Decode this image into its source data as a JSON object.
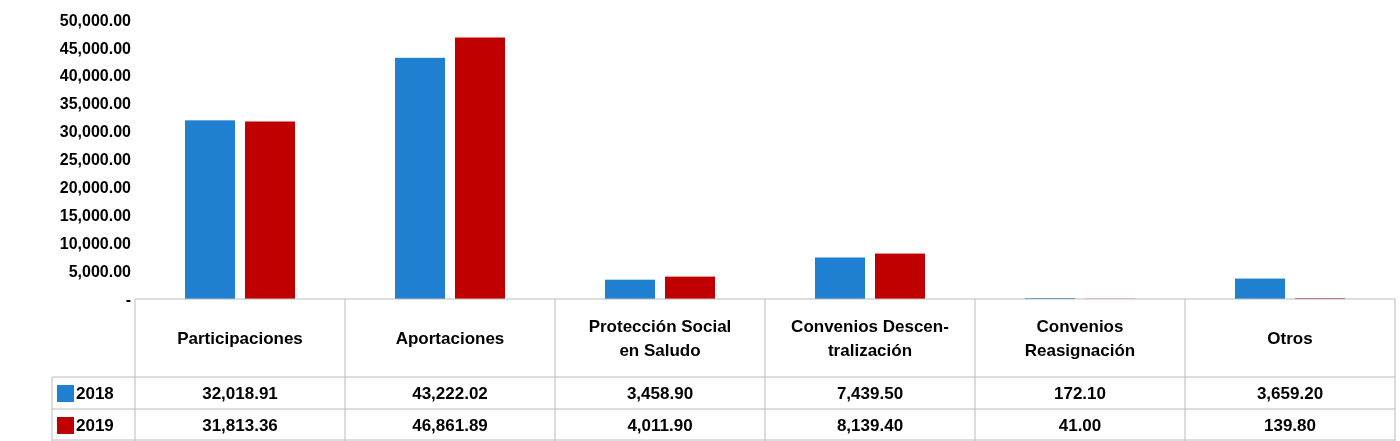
{
  "chart_data": {
    "type": "bar",
    "categories": [
      "Participaciones",
      "Aportaciones",
      "Protección Social\nen Saludo",
      "Convenios Descen-\ntralización",
      "Convenios\nReasignación",
      "Otros"
    ],
    "series": [
      {
        "name": "2018",
        "color": "#1f7fd0",
        "values": [
          32018.91,
          43222.02,
          3458.9,
          7439.5,
          172.1,
          3659.2
        ],
        "value_labels": [
          "32,018.91",
          "43,222.02",
          "3,458.90",
          "7,439.50",
          "172.10",
          "3,659.20"
        ]
      },
      {
        "name": "2019",
        "color": "#c00000",
        "values": [
          31813.36,
          46861.89,
          4011.9,
          8139.4,
          41.0,
          139.8
        ],
        "value_labels": [
          "31,813.36",
          "46,861.89",
          "4,011.90",
          "8,139.40",
          "41.00",
          "139.80"
        ]
      }
    ],
    "ylim": [
      0,
      50000
    ],
    "yticks": [
      {
        "value": 0,
        "label": "-"
      },
      {
        "value": 5000,
        "label": "5,000.00"
      },
      {
        "value": 10000,
        "label": "10,000.00"
      },
      {
        "value": 15000,
        "label": "15,000.00"
      },
      {
        "value": 20000,
        "label": "20,000.00"
      },
      {
        "value": 25000,
        "label": "25,000.00"
      },
      {
        "value": 30000,
        "label": "30,000.00"
      },
      {
        "value": 35000,
        "label": "35,000.00"
      },
      {
        "value": 40000,
        "label": "40,000.00"
      },
      {
        "value": 45000,
        "label": "45,000.00"
      },
      {
        "value": 50000,
        "label": "50,000.00"
      }
    ],
    "grid": false,
    "legend": "bottom"
  }
}
